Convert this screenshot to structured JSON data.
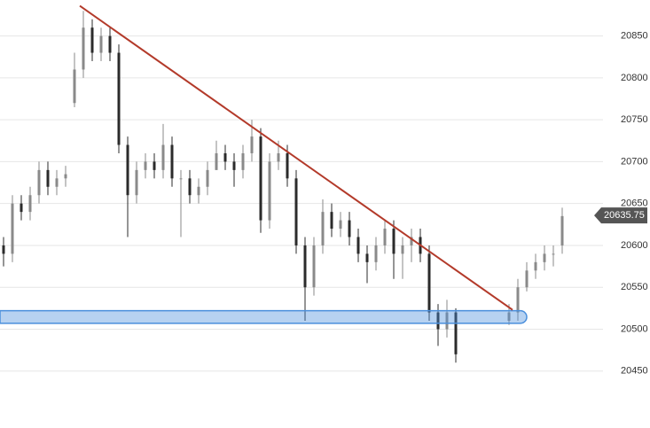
{
  "chart_data": {
    "type": "candlestick",
    "open": [
      20600,
      20590,
      20650,
      20640,
      20660,
      20690,
      20670,
      20680,
      20770,
      20810,
      20860,
      20830,
      20850,
      20830,
      20720,
      20660,
      20690,
      20700,
      20690,
      20720,
      20680,
      20680,
      20660,
      20670,
      20690,
      20710,
      20700,
      20690,
      20710,
      20730,
      20630,
      20700,
      20710,
      20680,
      20600,
      20550,
      20600,
      20640,
      20620,
      20630,
      20610,
      20590,
      20580,
      20600,
      20620,
      20590,
      20600,
      20610,
      20590,
      20520,
      20500,
      20520,
      null,
      null,
      null,
      null,
      null,
      20510,
      20520,
      20550,
      20570,
      20580,
      20590,
      20600
    ],
    "high": [
      20610,
      20660,
      20660,
      20670,
      20700,
      20700,
      20690,
      20695,
      20830,
      20880,
      20870,
      20860,
      20860,
      20840,
      20730,
      20700,
      20710,
      20710,
      20745,
      20730,
      20690,
      20690,
      20680,
      20700,
      20725,
      20720,
      20710,
      20720,
      20750,
      20740,
      20710,
      20725,
      20720,
      20690,
      20610,
      20610,
      20655,
      20650,
      20640,
      20640,
      20620,
      20600,
      20610,
      20630,
      20630,
      20610,
      20620,
      20620,
      20600,
      20530,
      20535,
      20525,
      null,
      null,
      null,
      null,
      null,
      20530,
      20560,
      20580,
      20590,
      20600,
      20600,
      20645
    ],
    "low": [
      20575,
      20580,
      20630,
      20630,
      20650,
      20660,
      20660,
      20670,
      20765,
      20800,
      20820,
      20820,
      20820,
      20710,
      20610,
      20650,
      20680,
      20680,
      20680,
      20670,
      20610,
      20650,
      20650,
      20660,
      20690,
      20690,
      20670,
      20680,
      20700,
      20615,
      20620,
      20690,
      20670,
      20590,
      20510,
      20540,
      20590,
      20610,
      20610,
      20600,
      20580,
      20555,
      20570,
      20590,
      20560,
      20560,
      20580,
      20580,
      20510,
      20480,
      20490,
      20460,
      null,
      null,
      null,
      null,
      null,
      20505,
      20510,
      20545,
      20560,
      20570,
      20575,
      20590
    ],
    "close": [
      20590,
      20650,
      20640,
      20660,
      20690,
      20670,
      20680,
      20685,
      20810,
      20860,
      20830,
      20850,
      20830,
      20720,
      20660,
      20690,
      20700,
      20690,
      20720,
      20680,
      20680,
      20660,
      20670,
      20690,
      20710,
      20700,
      20690,
      20710,
      20730,
      20630,
      20700,
      20710,
      20680,
      20600,
      20550,
      20600,
      20640,
      20620,
      20630,
      20610,
      20590,
      20580,
      20600,
      20620,
      20590,
      20600,
      20610,
      20590,
      20520,
      20500,
      20520,
      20470,
      null,
      null,
      null,
      null,
      null,
      20520,
      20550,
      20570,
      20580,
      20590,
      20590,
      20635
    ],
    "up_color": "#8a8a8a",
    "down_color": "#2b2b2b",
    "ylim": [
      20382,
      20893
    ],
    "yticks": [
      20450,
      20500,
      20550,
      20600,
      20650,
      20700,
      20750,
      20800,
      20850
    ],
    "grid": true,
    "last_price": 20635.75,
    "trendline": {
      "points": [
        [
          8.6,
          20886
        ],
        [
          57.4,
          20523
        ]
      ],
      "color": "#b33a2a"
    },
    "zone": {
      "low": 20507,
      "high": 20522,
      "end": 59,
      "color": "#4a8fdc"
    }
  }
}
